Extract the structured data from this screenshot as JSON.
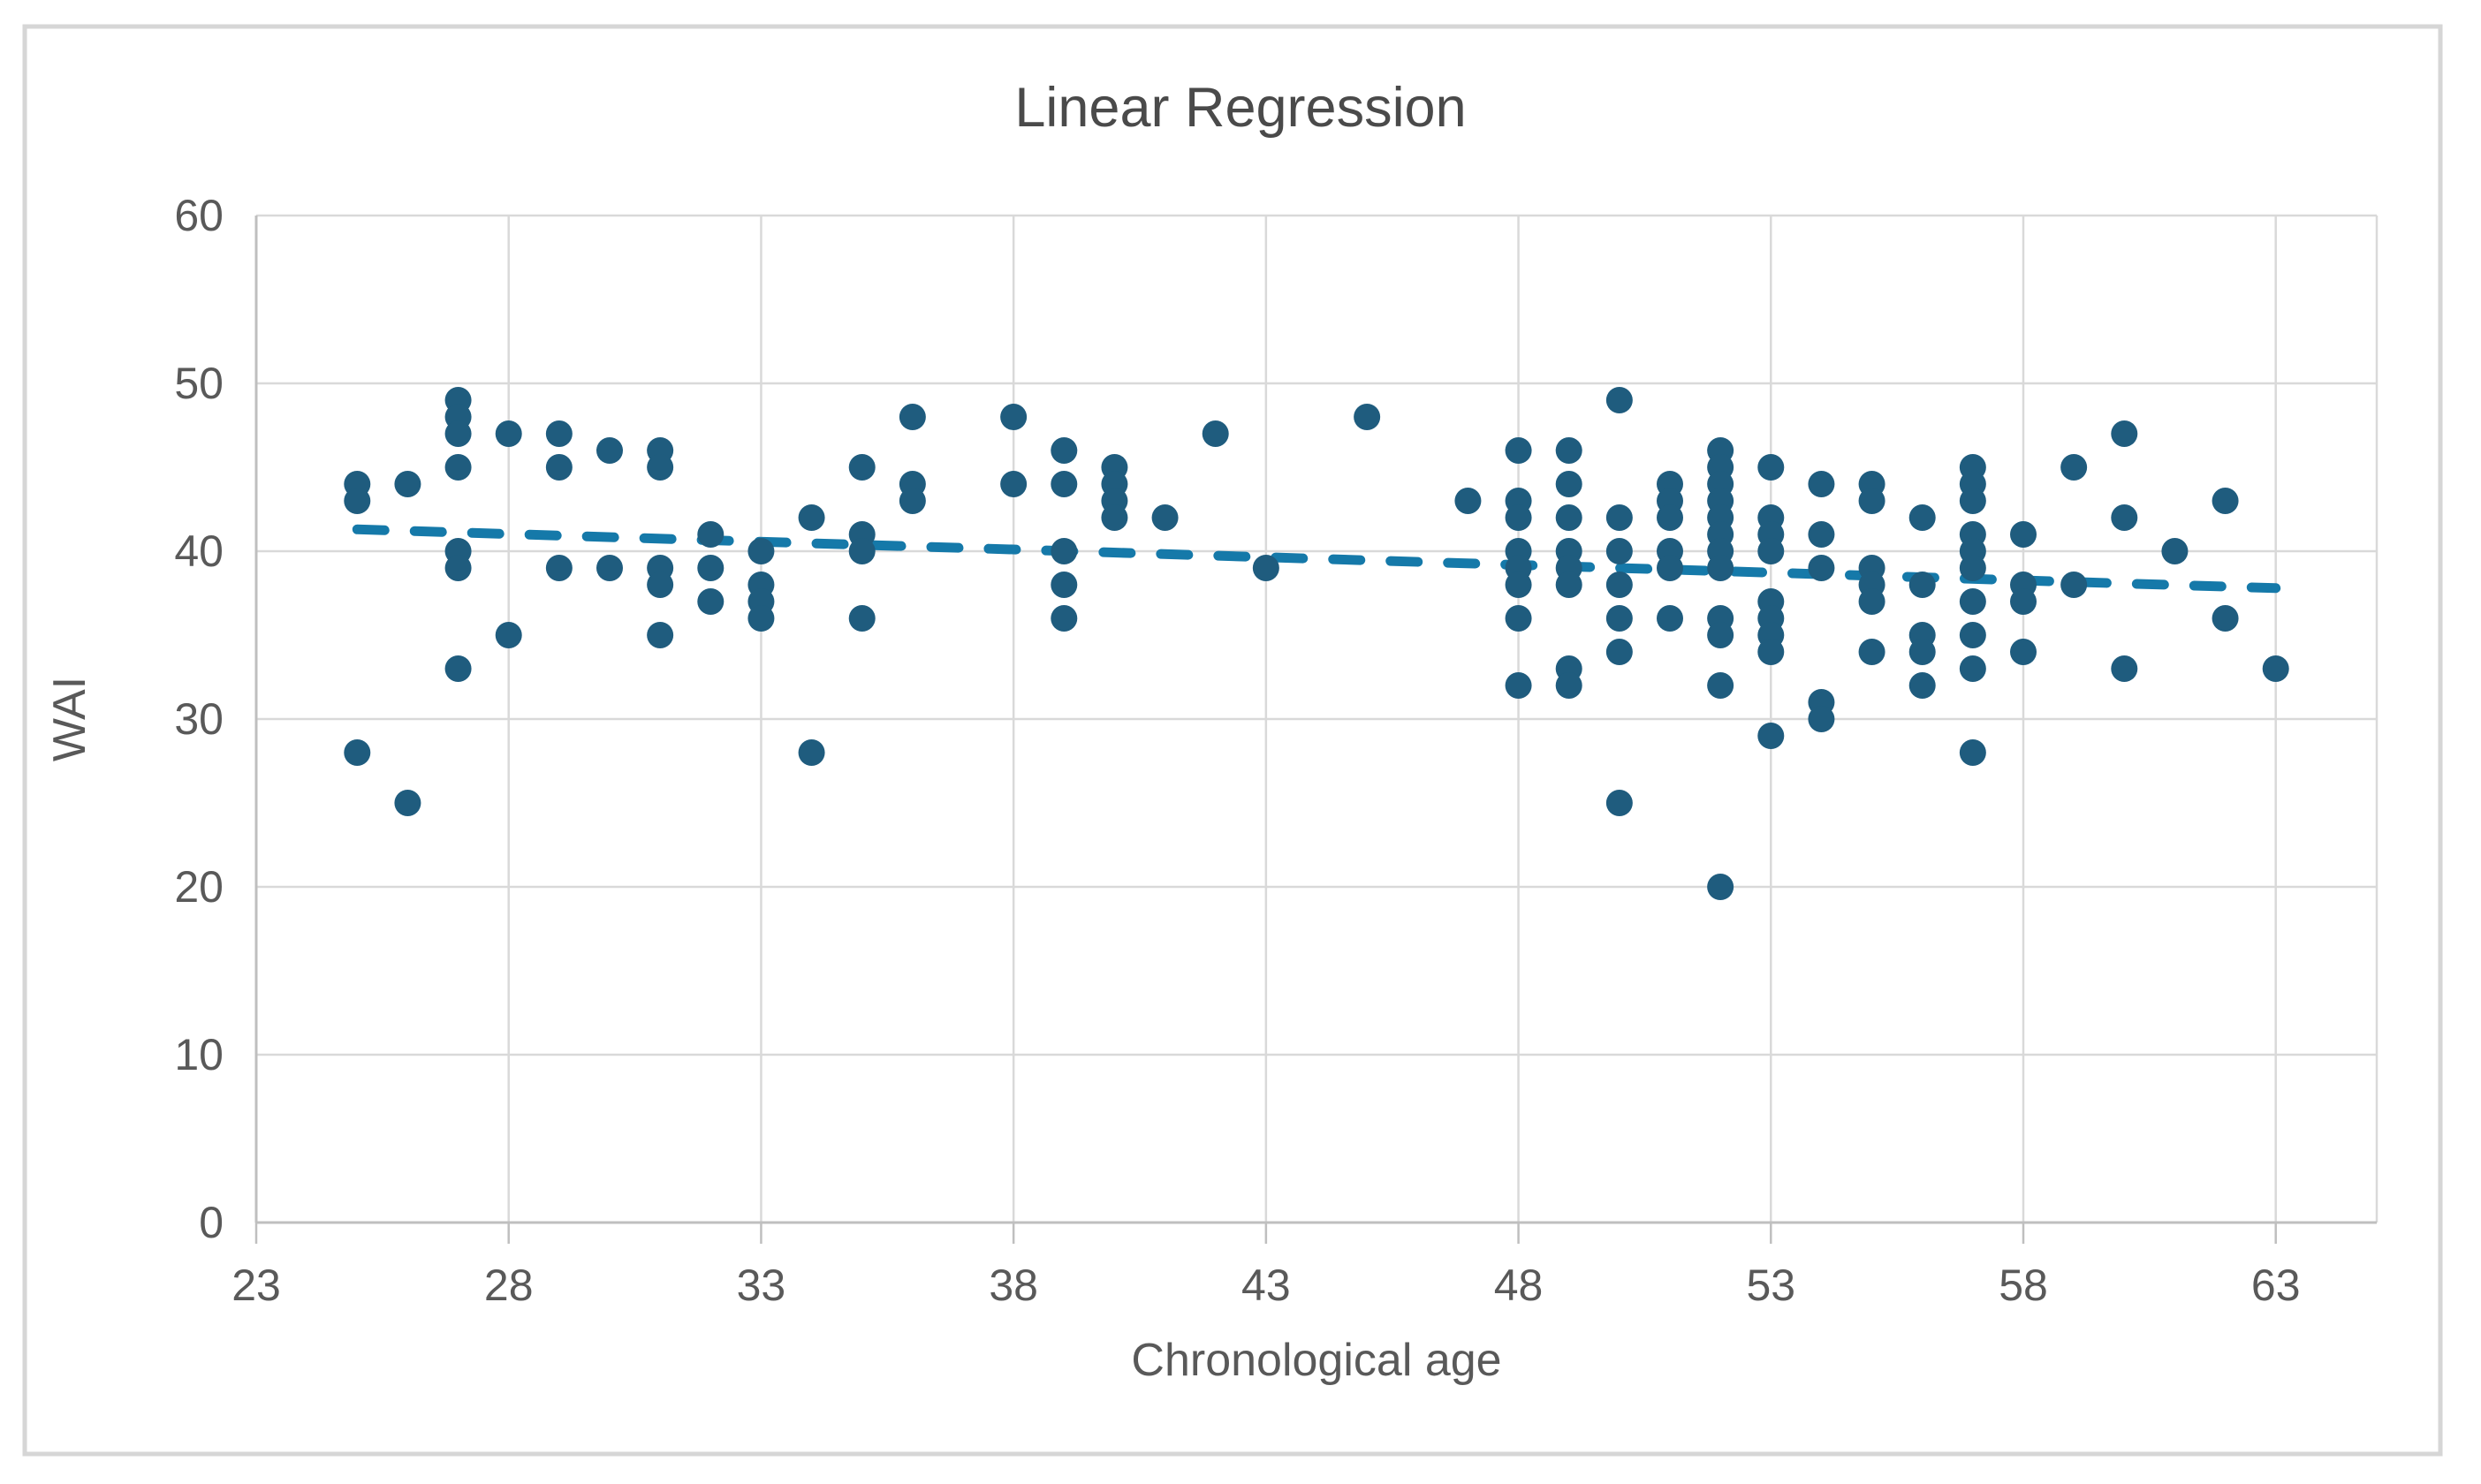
{
  "figure": {
    "background": "#ffffff",
    "border_color": "#d6d6d6"
  },
  "chart_data": {
    "type": "scatter",
    "title": "Linear Regression",
    "xlabel": "Chronological age",
    "ylabel": "WAI",
    "xlim": [
      23,
      65
    ],
    "ylim": [
      0,
      60
    ],
    "x_ticks": [
      23,
      28,
      33,
      38,
      43,
      48,
      53,
      58,
      63
    ],
    "y_ticks": [
      0,
      10,
      20,
      30,
      40,
      50,
      60
    ],
    "grid": true,
    "legend": "none",
    "gridline_color": "#d9d9d9",
    "axis_color": "#bfbfbf",
    "text_color": "#595959",
    "title_color": "#4a4a4a",
    "marker_color": "#1f5c7e",
    "trendline_color": "#1579a9",
    "points": [
      [
        25,
        44
      ],
      [
        25,
        43
      ],
      [
        25,
        28
      ],
      [
        26,
        44
      ],
      [
        26,
        25
      ],
      [
        27,
        49
      ],
      [
        27,
        48
      ],
      [
        27,
        47
      ],
      [
        27,
        45
      ],
      [
        27,
        40
      ],
      [
        27,
        39
      ],
      [
        27,
        33
      ],
      [
        28,
        47
      ],
      [
        28,
        35
      ],
      [
        29,
        47
      ],
      [
        29,
        45
      ],
      [
        29,
        39
      ],
      [
        30,
        46
      ],
      [
        30,
        39
      ],
      [
        31,
        46
      ],
      [
        31,
        45
      ],
      [
        31,
        39
      ],
      [
        31,
        38
      ],
      [
        31,
        35
      ],
      [
        32,
        41
      ],
      [
        32,
        39
      ],
      [
        32,
        37
      ],
      [
        33,
        40
      ],
      [
        33,
        38
      ],
      [
        33,
        37
      ],
      [
        33,
        36
      ],
      [
        34,
        42
      ],
      [
        34,
        28
      ],
      [
        35,
        45
      ],
      [
        35,
        41
      ],
      [
        35,
        40
      ],
      [
        35,
        36
      ],
      [
        36,
        48
      ],
      [
        36,
        44
      ],
      [
        36,
        43
      ],
      [
        38,
        48
      ],
      [
        38,
        44
      ],
      [
        39,
        46
      ],
      [
        39,
        44
      ],
      [
        39,
        40
      ],
      [
        39,
        38
      ],
      [
        39,
        36
      ],
      [
        40,
        45
      ],
      [
        40,
        44
      ],
      [
        40,
        43
      ],
      [
        40,
        42
      ],
      [
        41,
        42
      ],
      [
        42,
        47
      ],
      [
        43,
        39
      ],
      [
        45,
        48
      ],
      [
        47,
        43
      ],
      [
        48,
        46
      ],
      [
        48,
        43
      ],
      [
        48,
        42
      ],
      [
        48,
        40
      ],
      [
        48,
        39
      ],
      [
        48,
        38
      ],
      [
        48,
        36
      ],
      [
        48,
        32
      ],
      [
        49,
        46
      ],
      [
        49,
        44
      ],
      [
        49,
        42
      ],
      [
        49,
        40
      ],
      [
        49,
        39
      ],
      [
        49,
        38
      ],
      [
        49,
        33
      ],
      [
        49,
        32
      ],
      [
        50,
        49
      ],
      [
        50,
        42
      ],
      [
        50,
        40
      ],
      [
        50,
        38
      ],
      [
        50,
        36
      ],
      [
        50,
        34
      ],
      [
        50,
        25
      ],
      [
        51,
        44
      ],
      [
        51,
        43
      ],
      [
        51,
        42
      ],
      [
        51,
        40
      ],
      [
        51,
        39
      ],
      [
        51,
        36
      ],
      [
        52,
        46
      ],
      [
        52,
        45
      ],
      [
        52,
        44
      ],
      [
        52,
        43
      ],
      [
        52,
        42
      ],
      [
        52,
        41
      ],
      [
        52,
        40
      ],
      [
        52,
        39
      ],
      [
        52,
        36
      ],
      [
        52,
        35
      ],
      [
        52,
        32
      ],
      [
        52,
        20
      ],
      [
        53,
        45
      ],
      [
        53,
        42
      ],
      [
        53,
        41
      ],
      [
        53,
        40
      ],
      [
        53,
        37
      ],
      [
        53,
        36
      ],
      [
        53,
        35
      ],
      [
        53,
        34
      ],
      [
        53,
        29
      ],
      [
        54,
        44
      ],
      [
        54,
        41
      ],
      [
        54,
        39
      ],
      [
        54,
        31
      ],
      [
        54,
        30
      ],
      [
        55,
        44
      ],
      [
        55,
        43
      ],
      [
        55,
        39
      ],
      [
        55,
        38
      ],
      [
        55,
        37
      ],
      [
        55,
        34
      ],
      [
        56,
        42
      ],
      [
        56,
        38
      ],
      [
        56,
        35
      ],
      [
        56,
        34
      ],
      [
        56,
        32
      ],
      [
        57,
        45
      ],
      [
        57,
        44
      ],
      [
        57,
        43
      ],
      [
        57,
        41
      ],
      [
        57,
        40
      ],
      [
        57,
        39
      ],
      [
        57,
        37
      ],
      [
        57,
        35
      ],
      [
        57,
        33
      ],
      [
        57,
        28
      ],
      [
        58,
        41
      ],
      [
        58,
        38
      ],
      [
        58,
        37
      ],
      [
        58,
        34
      ],
      [
        59,
        45
      ],
      [
        59,
        38
      ],
      [
        60,
        47
      ],
      [
        60,
        42
      ],
      [
        60,
        33
      ],
      [
        61,
        40
      ],
      [
        62,
        43
      ],
      [
        62,
        36
      ],
      [
        63,
        33
      ]
    ],
    "trendline": {
      "x1": 25,
      "y1": 41.3,
      "x2": 63,
      "y2": 37.8,
      "style": "dashed"
    }
  }
}
